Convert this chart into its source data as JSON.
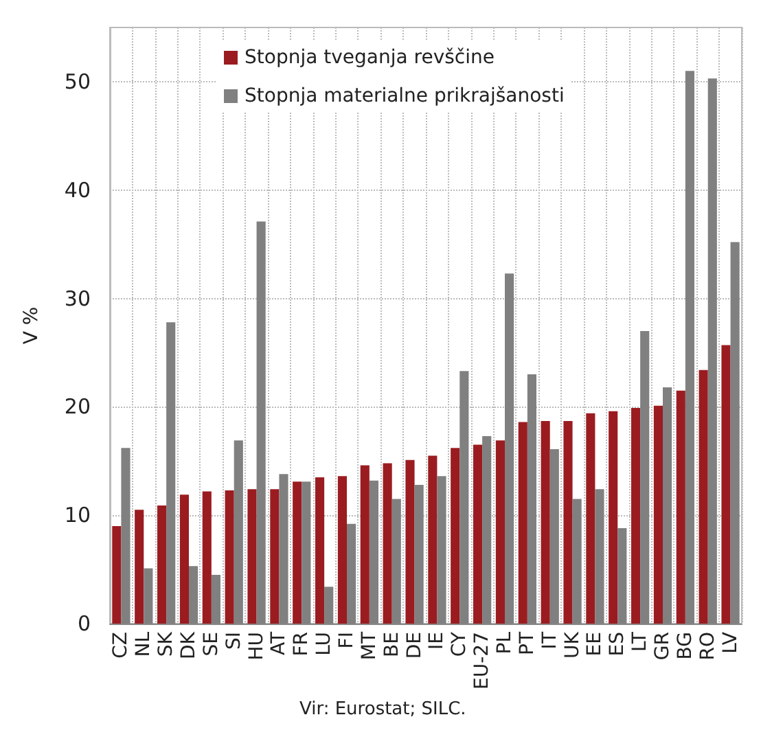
{
  "chart_data": {
    "type": "bar",
    "ylabel": "V %",
    "annotations": [
      "Vir: Eurostat; SILC."
    ],
    "categories": [
      "CZ",
      "NL",
      "SK",
      "DK",
      "SE",
      "SI",
      "HU",
      "AT",
      "FR",
      "LU",
      "FI",
      "MT",
      "BE",
      "DE",
      "IE",
      "CY",
      "EU-27",
      "PL",
      "PT",
      "IT",
      "UK",
      "EE",
      "ES",
      "LT",
      "GR",
      "BG",
      "RO",
      "LV"
    ],
    "series": [
      {
        "name": "Stopnja tveganja revščine",
        "color": "#9b1c20",
        "values": [
          9.0,
          10.5,
          10.9,
          11.9,
          12.2,
          12.3,
          12.4,
          12.4,
          13.1,
          13.5,
          13.6,
          14.6,
          14.8,
          15.1,
          15.5,
          16.2,
          16.5,
          16.9,
          18.6,
          18.7,
          18.7,
          19.4,
          19.6,
          19.9,
          20.1,
          21.5,
          23.4,
          25.7
        ]
      },
      {
        "name": "Stopnja materialne prikrajšanosti",
        "color": "#808080",
        "values": [
          16.2,
          5.1,
          27.8,
          5.3,
          4.5,
          16.9,
          37.1,
          13.8,
          13.1,
          3.4,
          9.2,
          13.2,
          11.5,
          12.8,
          13.6,
          23.3,
          17.3,
          32.3,
          23.0,
          16.1,
          11.5,
          12.4,
          8.8,
          27.0,
          21.8,
          51.0,
          50.3,
          35.2
        ]
      }
    ],
    "ylim": [
      0,
      55
    ],
    "yticks": [
      0,
      10,
      20,
      30,
      40,
      50
    ],
    "grid": true,
    "legend": "top"
  }
}
